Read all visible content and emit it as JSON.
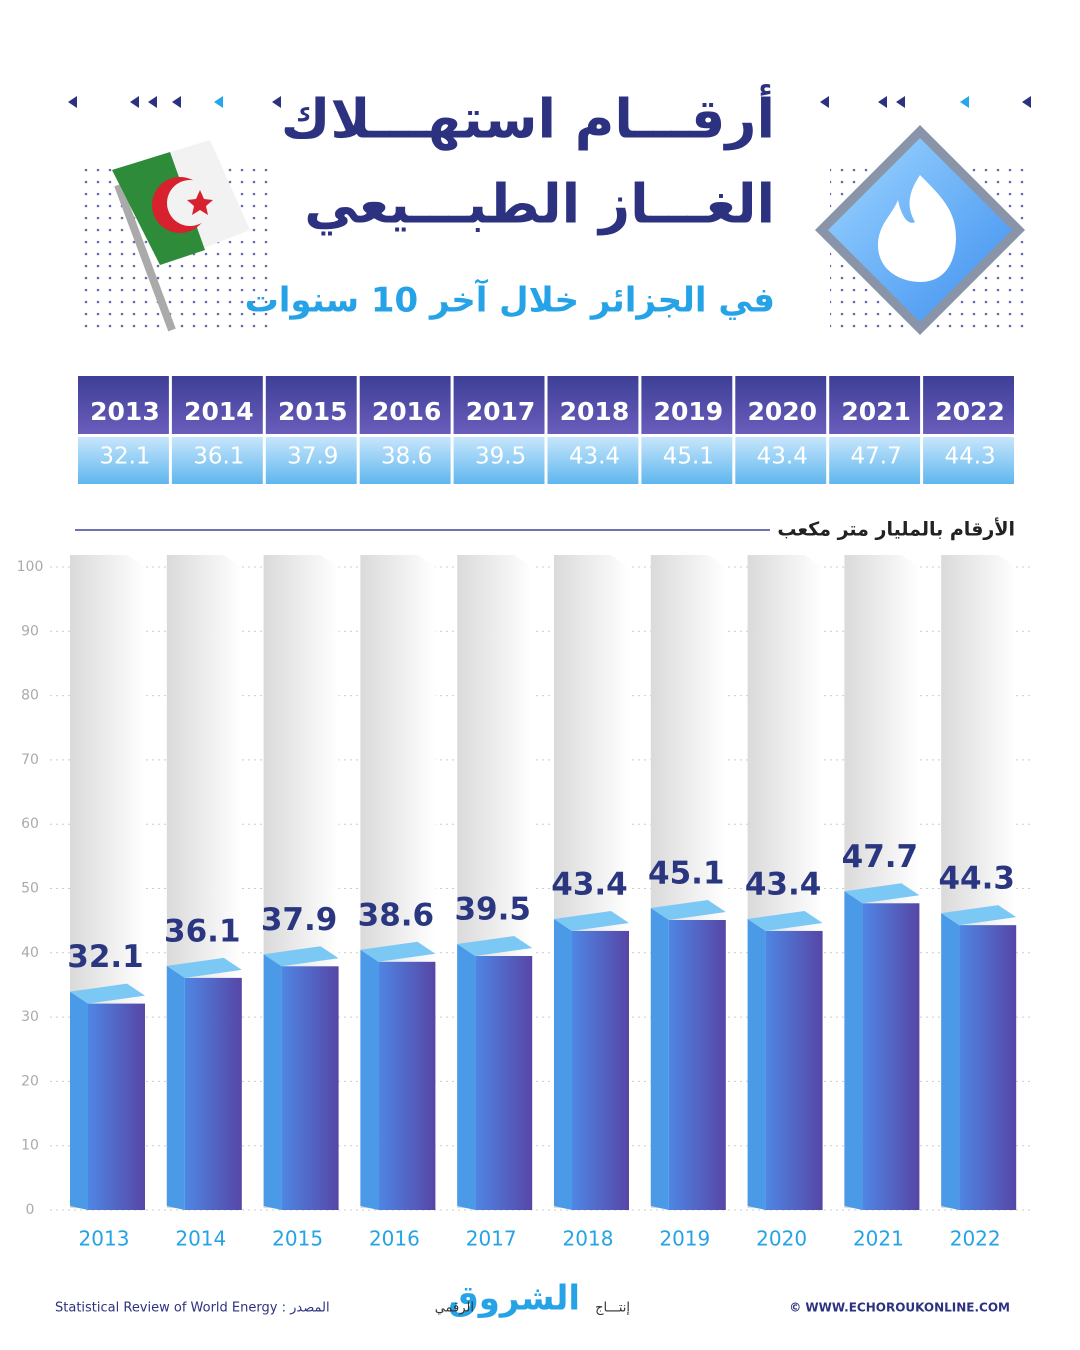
{
  "chart_data": {
    "type": "bar",
    "title_lines": [
      "أرقـــام استهـــلاك",
      "الغـــاز الطبـــيعي"
    ],
    "subtitle": "في الجزائر خلال آخر 10 سنوات",
    "unit_label": "الأرقام بالمليار متر مكعب",
    "categories": [
      "2013",
      "2014",
      "2015",
      "2016",
      "2017",
      "2018",
      "2019",
      "2020",
      "2021",
      "2022"
    ],
    "values": [
      32.1,
      36.1,
      37.9,
      38.6,
      39.5,
      43.4,
      45.1,
      43.4,
      47.7,
      44.3
    ],
    "color": "#4a5fc8",
    "ylim": [
      0,
      100
    ],
    "yticks": [
      0,
      10,
      20,
      30,
      40,
      50,
      60,
      70,
      80,
      90,
      100
    ],
    "grid": true
  },
  "footer": {
    "source": "Statistical Review of World Energy : المصدر",
    "brand": "الشروق",
    "brand_prefix": "إنتـــاج",
    "brand_suffix": "الرقمي",
    "website": "© WWW.ECHOROUKONLINE.COM"
  }
}
